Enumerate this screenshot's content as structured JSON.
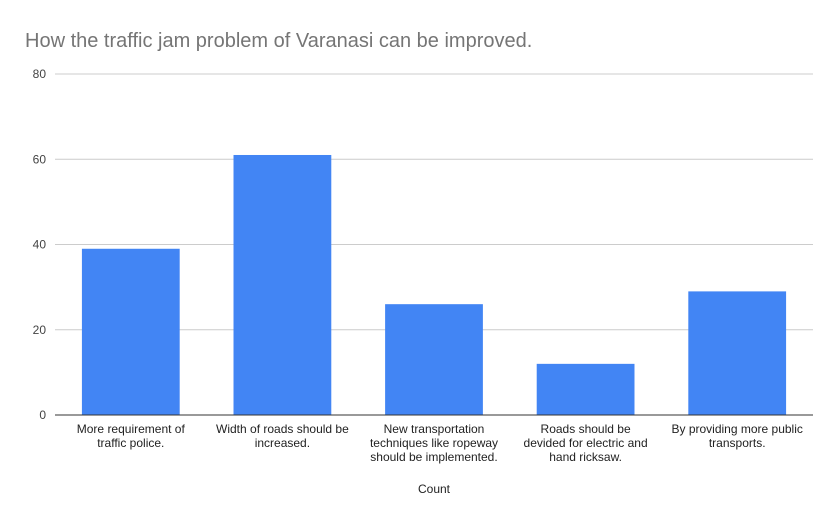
{
  "chart_data": {
    "type": "bar",
    "title": "How the traffic jam problem of Varanasi can be improved.",
    "xlabel": "Count",
    "ylabel": "",
    "ylim": [
      0,
      80
    ],
    "yticks": [
      0,
      20,
      40,
      60,
      80
    ],
    "grid": true,
    "legend": "none",
    "bar_color": "#4285f4",
    "categories": [
      [
        "More requirement of",
        "traffic police."
      ],
      [
        "Width of roads should be",
        "increased."
      ],
      [
        "New transportation",
        "techniques like ropeway",
        "should be implemented."
      ],
      [
        "Roads should be",
        "devided for electric and",
        "hand ricksaw."
      ],
      [
        "By providing more public",
        "transports."
      ]
    ],
    "values": [
      39,
      61,
      26,
      12,
      29
    ]
  }
}
